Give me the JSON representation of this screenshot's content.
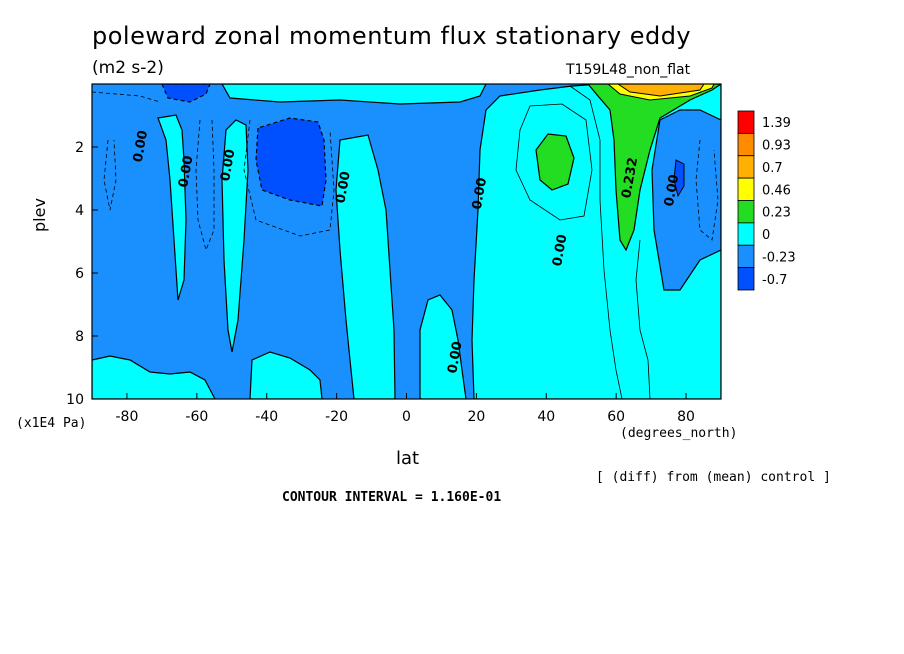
{
  "chart_data": {
    "type": "contour",
    "title": "poleward zonal momentum flux stationary eddy",
    "units": "(m2 s-2)",
    "run_label": "T159L48_non_flat",
    "xlabel": "lat",
    "x_unit": "(degrees_north)",
    "ylabel": "plev",
    "y_unit": "(x1E4 Pa)",
    "xlim": [
      -90,
      90
    ],
    "ylim": [
      10,
      0
    ],
    "x_ticks": [
      "-80",
      "-60",
      "-40",
      "-20",
      "0",
      "20",
      "40",
      "60",
      "80"
    ],
    "y_ticks": [
      "2",
      "4",
      "6",
      "8",
      "10"
    ],
    "colorbar_levels": [
      "1.39",
      "0.93",
      "0.7",
      "0.46",
      "0.23",
      "0",
      "-0.23",
      "-0.7"
    ],
    "colorbar_colors": [
      "#ff0000",
      "#ff8c00",
      "#ffb000",
      "#ffff00",
      "#22dd22",
      "#00ffff",
      "#1a90ff",
      "#0050ff"
    ],
    "contour_labels": [
      {
        "text": "0.00",
        "lat": -75,
        "plev": 2.0
      },
      {
        "text": "0.00",
        "lat": -62,
        "plev": 2.8
      },
      {
        "text": "0.00",
        "lat": -50,
        "plev": 2.6
      },
      {
        "text": "0.00",
        "lat": -17,
        "plev": 3.3
      },
      {
        "text": "0.00",
        "lat": 22,
        "plev": 3.5
      },
      {
        "text": "0.00",
        "lat": 45,
        "plev": 5.3
      },
      {
        "text": "0.232",
        "lat": 65,
        "plev": 3.0
      },
      {
        "text": "0.00",
        "lat": 77,
        "plev": 3.4
      },
      {
        "text": "0.00",
        "lat": 15,
        "plev": 8.7
      }
    ],
    "contour_interval": "CONTOUR INTERVAL = 1.160E-01",
    "comparison": "[ (diff) from (mean) control ]"
  }
}
